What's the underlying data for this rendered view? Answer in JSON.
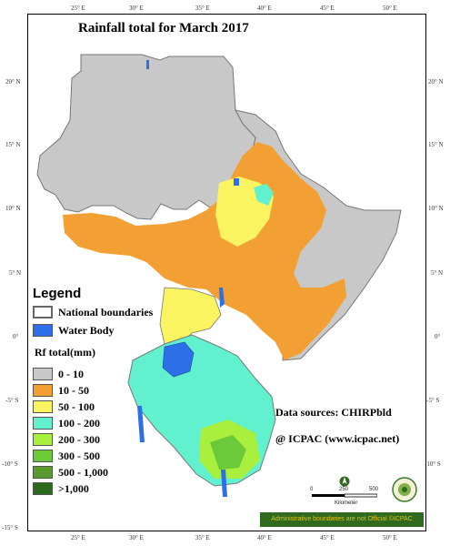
{
  "map": {
    "title": "Rainfall total  for March 2017",
    "lon_ticks": [
      "25° E",
      "30° E",
      "35° E",
      "40° E",
      "45° E",
      "50° E"
    ],
    "lat_ticks": [
      "20° N",
      "15° N",
      "10° N",
      "5° N",
      "0°",
      "-5° S",
      "-10° S",
      "-15° S"
    ]
  },
  "legend": {
    "title": "Legend",
    "items": [
      {
        "label": "National boundaries",
        "color": "#ffffff"
      },
      {
        "label": "Water Body",
        "color": "#2c6fe8"
      }
    ]
  },
  "rainfall": {
    "title": "Rf total(mm)",
    "classes": [
      {
        "label": "0 - 10",
        "color": "#c8c8c8"
      },
      {
        "label": "10 - 50",
        "color": "#f2a033"
      },
      {
        "label": "50 - 100",
        "color": "#faf461"
      },
      {
        "label": "100 - 200",
        "color": "#61f1cf"
      },
      {
        "label": "200 - 300",
        "color": "#a9ef3e"
      },
      {
        "label": "300 - 500",
        "color": "#6cc93a"
      },
      {
        "label": "500 - 1,000",
        "color": "#5a9a2e"
      },
      {
        "label": ">1,000",
        "color": "#2c6a1e"
      }
    ]
  },
  "info": {
    "data_sources": "Data sources: CHIRPbld",
    "credit": "@ ICPAC (www.icpac.net)",
    "disclaimer": "Administrative boundaries are not Official  ©ICPAC"
  },
  "scale_bar": {
    "labels": [
      "0",
      "250",
      "500"
    ],
    "unit": "Kilometer"
  }
}
